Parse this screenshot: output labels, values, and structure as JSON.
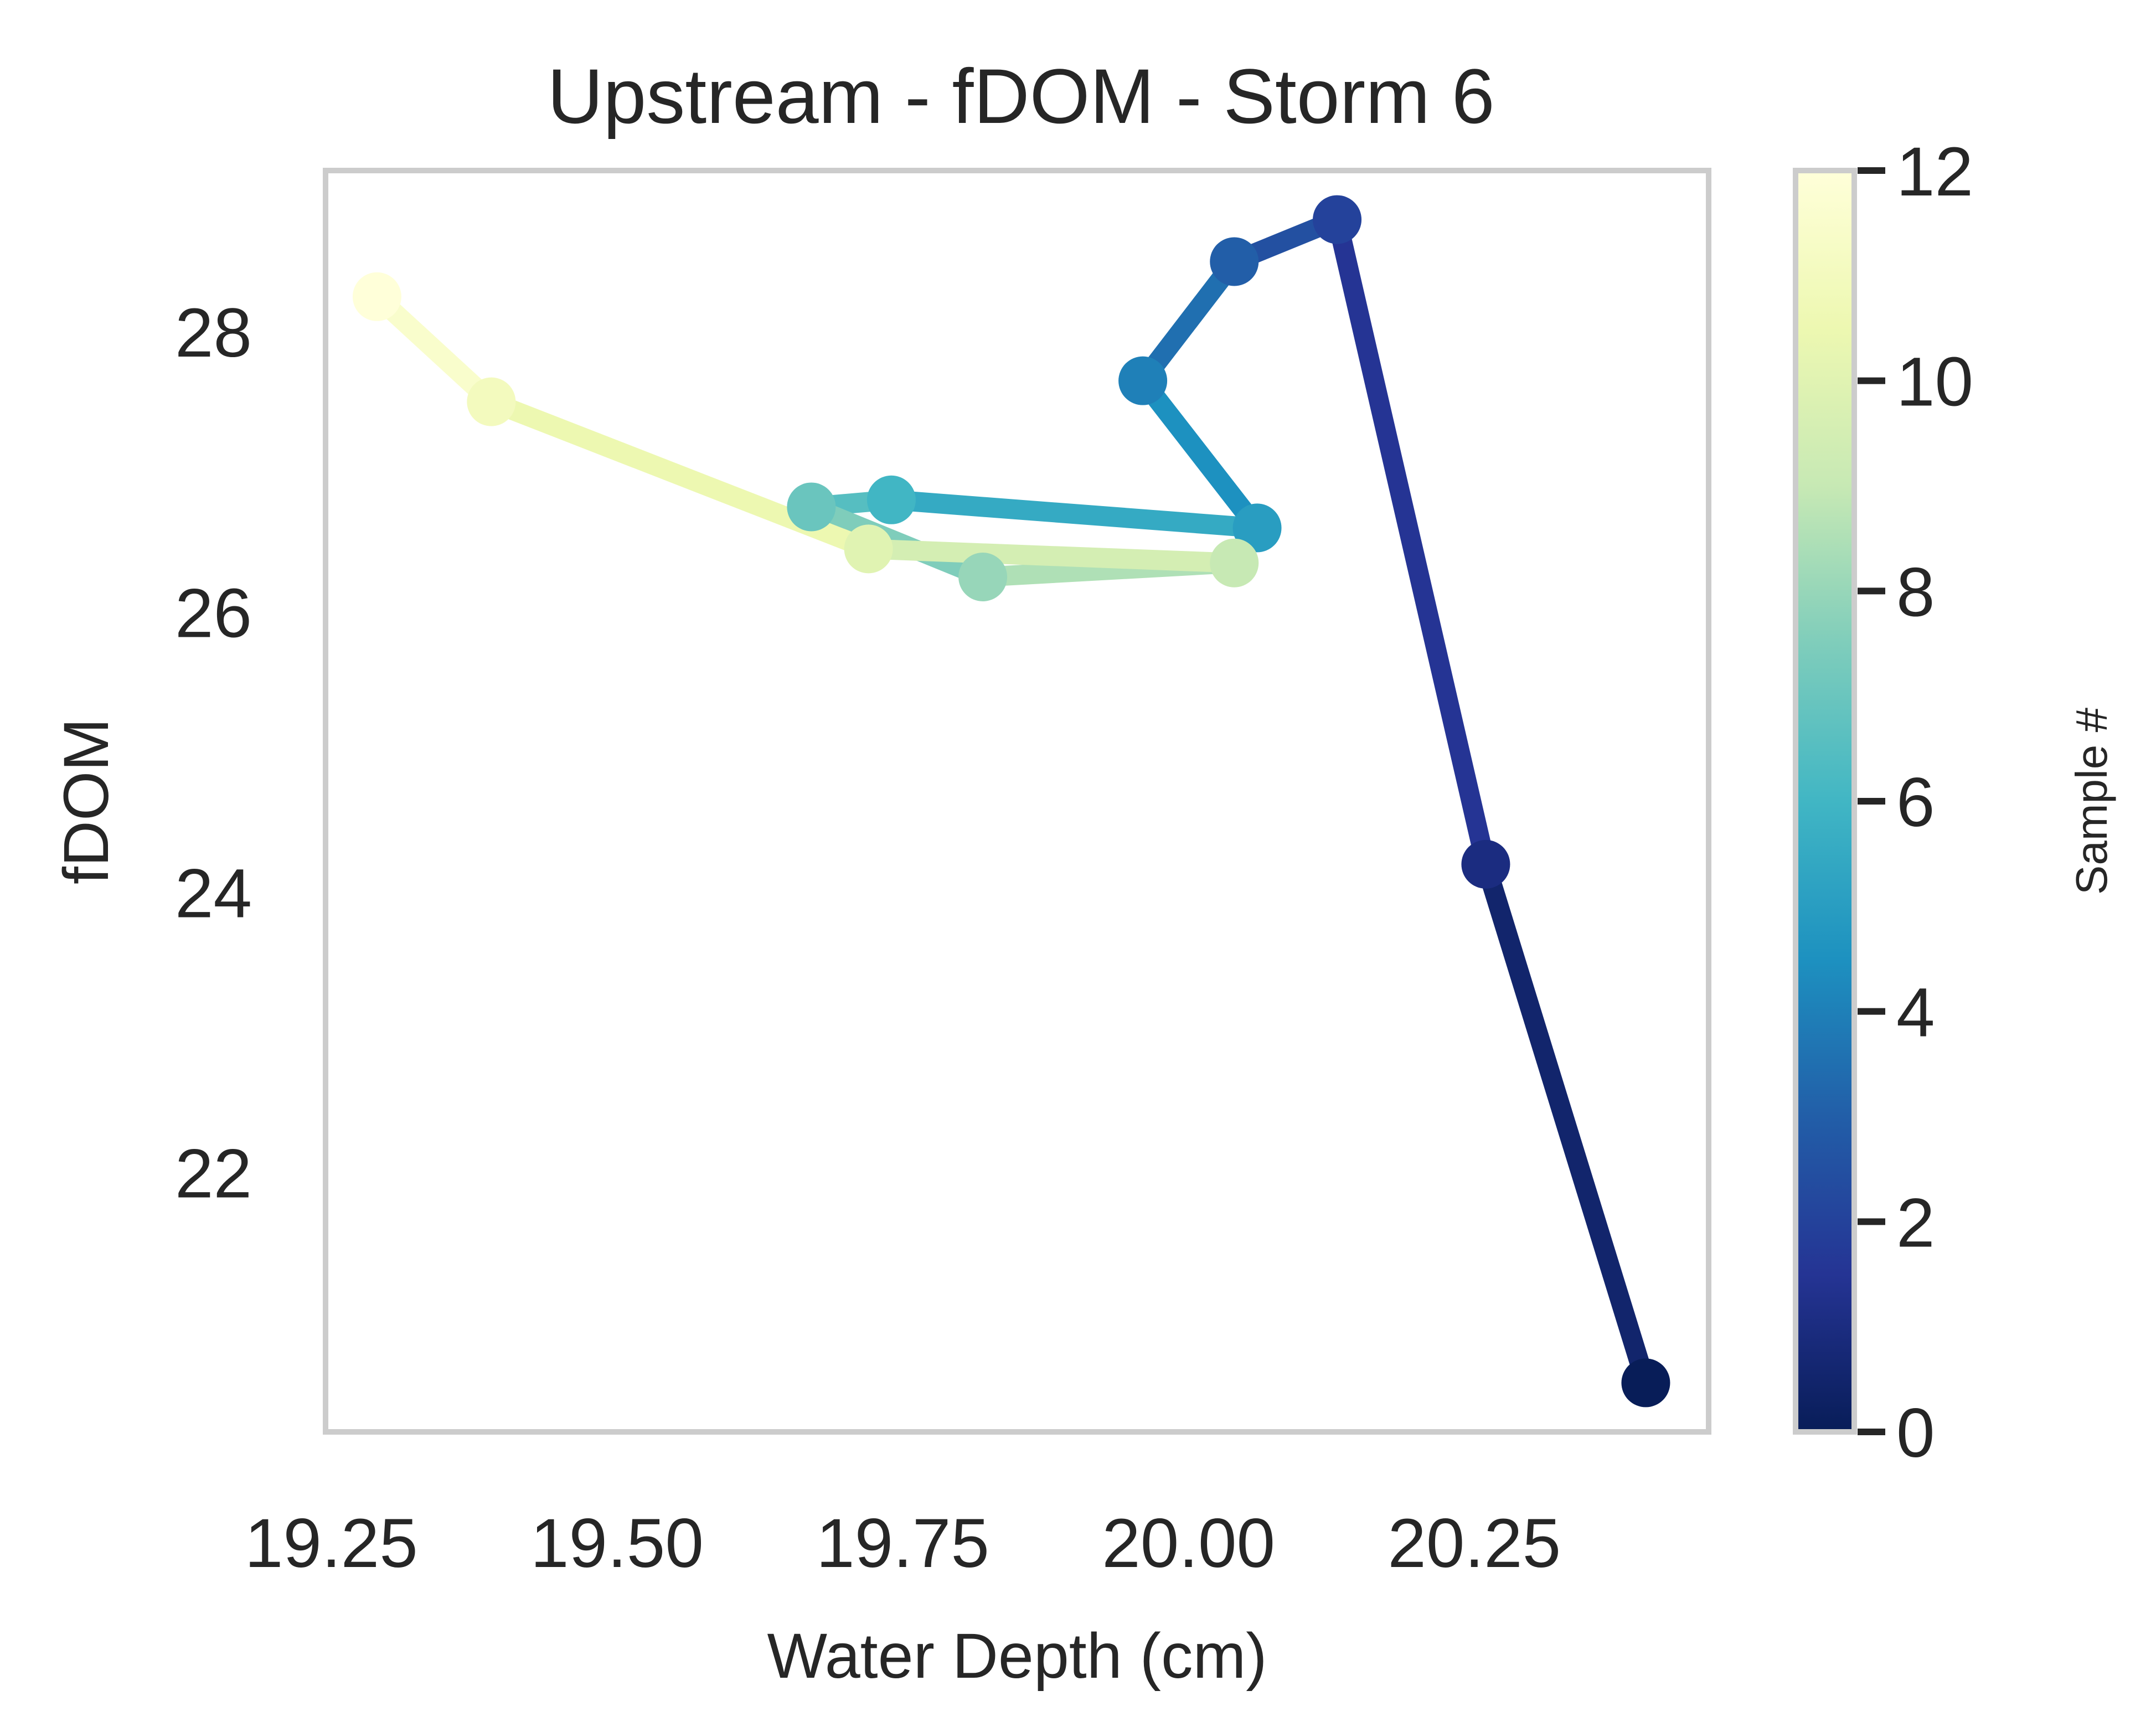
{
  "chart_data": {
    "type": "line",
    "title": "Upstream - fDOM - Storm 6",
    "xlabel": "Water Depth (cm)",
    "ylabel": "fDOM",
    "xlim": [
      19.245,
      20.455
    ],
    "ylim": [
      20.15,
      29.15
    ],
    "xticks": [
      19.25,
      19.5,
      19.75,
      20.0,
      20.25
    ],
    "xtick_labels": [
      "19.25",
      "19.50",
      "19.75",
      "20.00",
      "20.25"
    ],
    "yticks": [
      22,
      24,
      26,
      28
    ],
    "ytick_labels": [
      "22",
      "24",
      "26",
      "28"
    ],
    "grid": false,
    "colormap": "YlGnBu_r",
    "colorbar": {
      "label": "Sample #",
      "range": [
        0,
        12
      ],
      "ticks": [
        0,
        2,
        4,
        6,
        8,
        10,
        12
      ],
      "tick_labels": [
        "0",
        "2",
        "4",
        "6",
        "8",
        "10",
        "12"
      ]
    },
    "series": [
      {
        "points": [
          {
            "sample": 0,
            "x": 20.4,
            "y": 20.5
          },
          {
            "sample": 1,
            "x": 20.26,
            "y": 24.2
          },
          {
            "sample": 2,
            "x": 20.13,
            "y": 28.8
          },
          {
            "sample": 3,
            "x": 20.04,
            "y": 28.5
          },
          {
            "sample": 4,
            "x": 19.96,
            "y": 27.65
          },
          {
            "sample": 5,
            "x": 20.06,
            "y": 26.6
          },
          {
            "sample": 6,
            "x": 19.74,
            "y": 26.8
          },
          {
            "sample": 7,
            "x": 19.67,
            "y": 26.75
          },
          {
            "sample": 8,
            "x": 19.82,
            "y": 26.25
          },
          {
            "sample": 9,
            "x": 20.04,
            "y": 26.35
          },
          {
            "sample": 10,
            "x": 19.72,
            "y": 26.45
          },
          {
            "sample": 11,
            "x": 19.39,
            "y": 27.5
          },
          {
            "sample": 12,
            "x": 19.29,
            "y": 28.25
          }
        ]
      }
    ]
  }
}
